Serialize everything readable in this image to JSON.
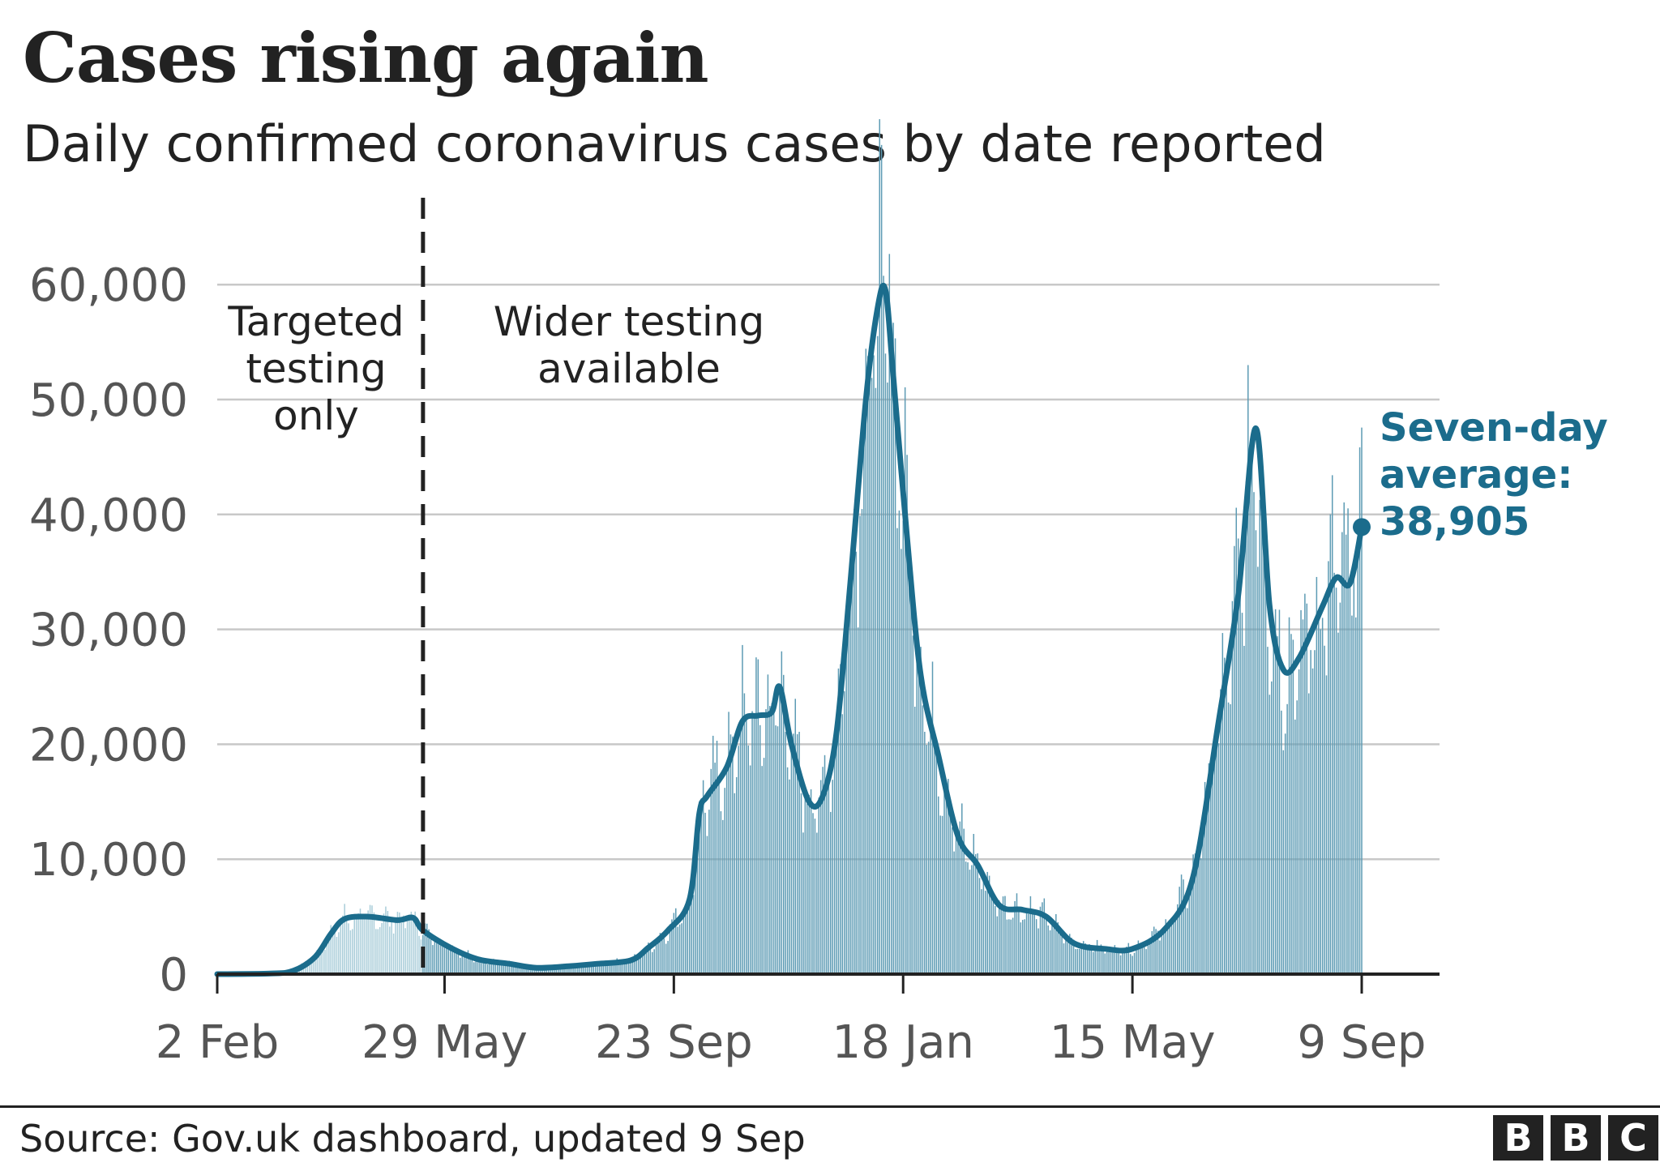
{
  "header": {
    "title": "Cases rising again",
    "subtitle": "Daily confirmed coronavirus cases by date reported"
  },
  "footer": {
    "source": "Source: Gov.uk dashboard, updated 9 Sep",
    "logo_letters": [
      "B",
      "B",
      "C"
    ]
  },
  "colors": {
    "bars_targeted": "#a9cdd9",
    "bars_wider": "#5d9bb4",
    "average_line": "#1b6c8c",
    "grid": "#c8c8c8",
    "axis": "#222222",
    "tick_text": "#555555",
    "text": "#222222"
  },
  "chart_data": {
    "type": "bar",
    "start_date": "2 Feb",
    "end_date": "9 Sep",
    "ylim": [
      0,
      65000
    ],
    "yticks": [
      0,
      10000,
      20000,
      30000,
      40000,
      50000,
      60000
    ],
    "ytick_labels": [
      "0",
      "10,000",
      "20,000",
      "30,000",
      "40,000",
      "50,000",
      "60,000"
    ],
    "xtick_labels": [
      "2 Feb",
      "29 May",
      "23 Sep",
      "18 Jan",
      "15 May",
      "9 Sep"
    ],
    "grid": true,
    "annotations": {
      "targeted": "Targeted testing only",
      "targeted_lines": [
        "Targeted",
        "testing",
        "only"
      ],
      "wider": "Wider testing available",
      "wider_lines": [
        "Wider testing",
        "available"
      ],
      "average_lines": [
        "Seven-day",
        "average:",
        "38,905"
      ],
      "testing_change_date": "18 May"
    },
    "series": [
      {
        "name": "Seven-day average",
        "values": [
          {
            "x": "2 Feb",
            "y": 0
          },
          {
            "x": "1 Mar",
            "y": 50
          },
          {
            "x": "13 Mar",
            "y": 300
          },
          {
            "x": "24 Mar",
            "y": 1500
          },
          {
            "x": "1 Apr",
            "y": 3500
          },
          {
            "x": "8 Apr",
            "y": 4800
          },
          {
            "x": "20 Apr",
            "y": 5000
          },
          {
            "x": "5 May",
            "y": 4700
          },
          {
            "x": "13 May",
            "y": 4900
          },
          {
            "x": "18 May",
            "y": 3800
          },
          {
            "x": "1 Jun",
            "y": 2300
          },
          {
            "x": "15 Jun",
            "y": 1300
          },
          {
            "x": "1 Jul",
            "y": 900
          },
          {
            "x": "15 Jul",
            "y": 550
          },
          {
            "x": "1 Aug",
            "y": 700
          },
          {
            "x": "15 Aug",
            "y": 900
          },
          {
            "x": "1 Sep",
            "y": 1200
          },
          {
            "x": "10 Sep",
            "y": 2300
          },
          {
            "x": "20 Sep",
            "y": 3800
          },
          {
            "x": "1 Oct",
            "y": 6500
          },
          {
            "x": "6 Oct",
            "y": 14000
          },
          {
            "x": "10 Oct",
            "y": 15500
          },
          {
            "x": "20 Oct",
            "y": 18000
          },
          {
            "x": "28 Oct",
            "y": 22000
          },
          {
            "x": "5 Nov",
            "y": 22500
          },
          {
            "x": "12 Nov",
            "y": 22800
          },
          {
            "x": "16 Nov",
            "y": 25000
          },
          {
            "x": "22 Nov",
            "y": 20000
          },
          {
            "x": "1 Dec",
            "y": 15000
          },
          {
            "x": "8 Dec",
            "y": 15500
          },
          {
            "x": "15 Dec",
            "y": 21000
          },
          {
            "x": "22 Dec",
            "y": 34000
          },
          {
            "x": "30 Dec",
            "y": 50000
          },
          {
            "x": "5 Jan",
            "y": 58000
          },
          {
            "x": "9 Jan",
            "y": 59500
          },
          {
            "x": "13 Jan",
            "y": 52000
          },
          {
            "x": "20 Jan",
            "y": 38000
          },
          {
            "x": "27 Jan",
            "y": 26000
          },
          {
            "x": "5 Feb",
            "y": 19000
          },
          {
            "x": "15 Feb",
            "y": 12000
          },
          {
            "x": "25 Feb",
            "y": 9500
          },
          {
            "x": "8 Mar",
            "y": 6000
          },
          {
            "x": "20 Mar",
            "y": 5600
          },
          {
            "x": "1 Apr",
            "y": 5000
          },
          {
            "x": "15 Apr",
            "y": 2700
          },
          {
            "x": "1 May",
            "y": 2200
          },
          {
            "x": "15 May",
            "y": 2200
          },
          {
            "x": "1 Jun",
            "y": 4000
          },
          {
            "x": "15 Jun",
            "y": 8500
          },
          {
            "x": "28 Jun",
            "y": 22000
          },
          {
            "x": "8 Jul",
            "y": 33000
          },
          {
            "x": "17 Jul",
            "y": 47500
          },
          {
            "x": "24 Jul",
            "y": 32000
          },
          {
            "x": "31 Jul",
            "y": 26500
          },
          {
            "x": "8 Aug",
            "y": 27500
          },
          {
            "x": "20 Aug",
            "y": 32000
          },
          {
            "x": "27 Aug",
            "y": 34500
          },
          {
            "x": "3 Sep",
            "y": 34000
          },
          {
            "x": "9 Sep",
            "y": 38905
          }
        ]
      }
    ]
  }
}
